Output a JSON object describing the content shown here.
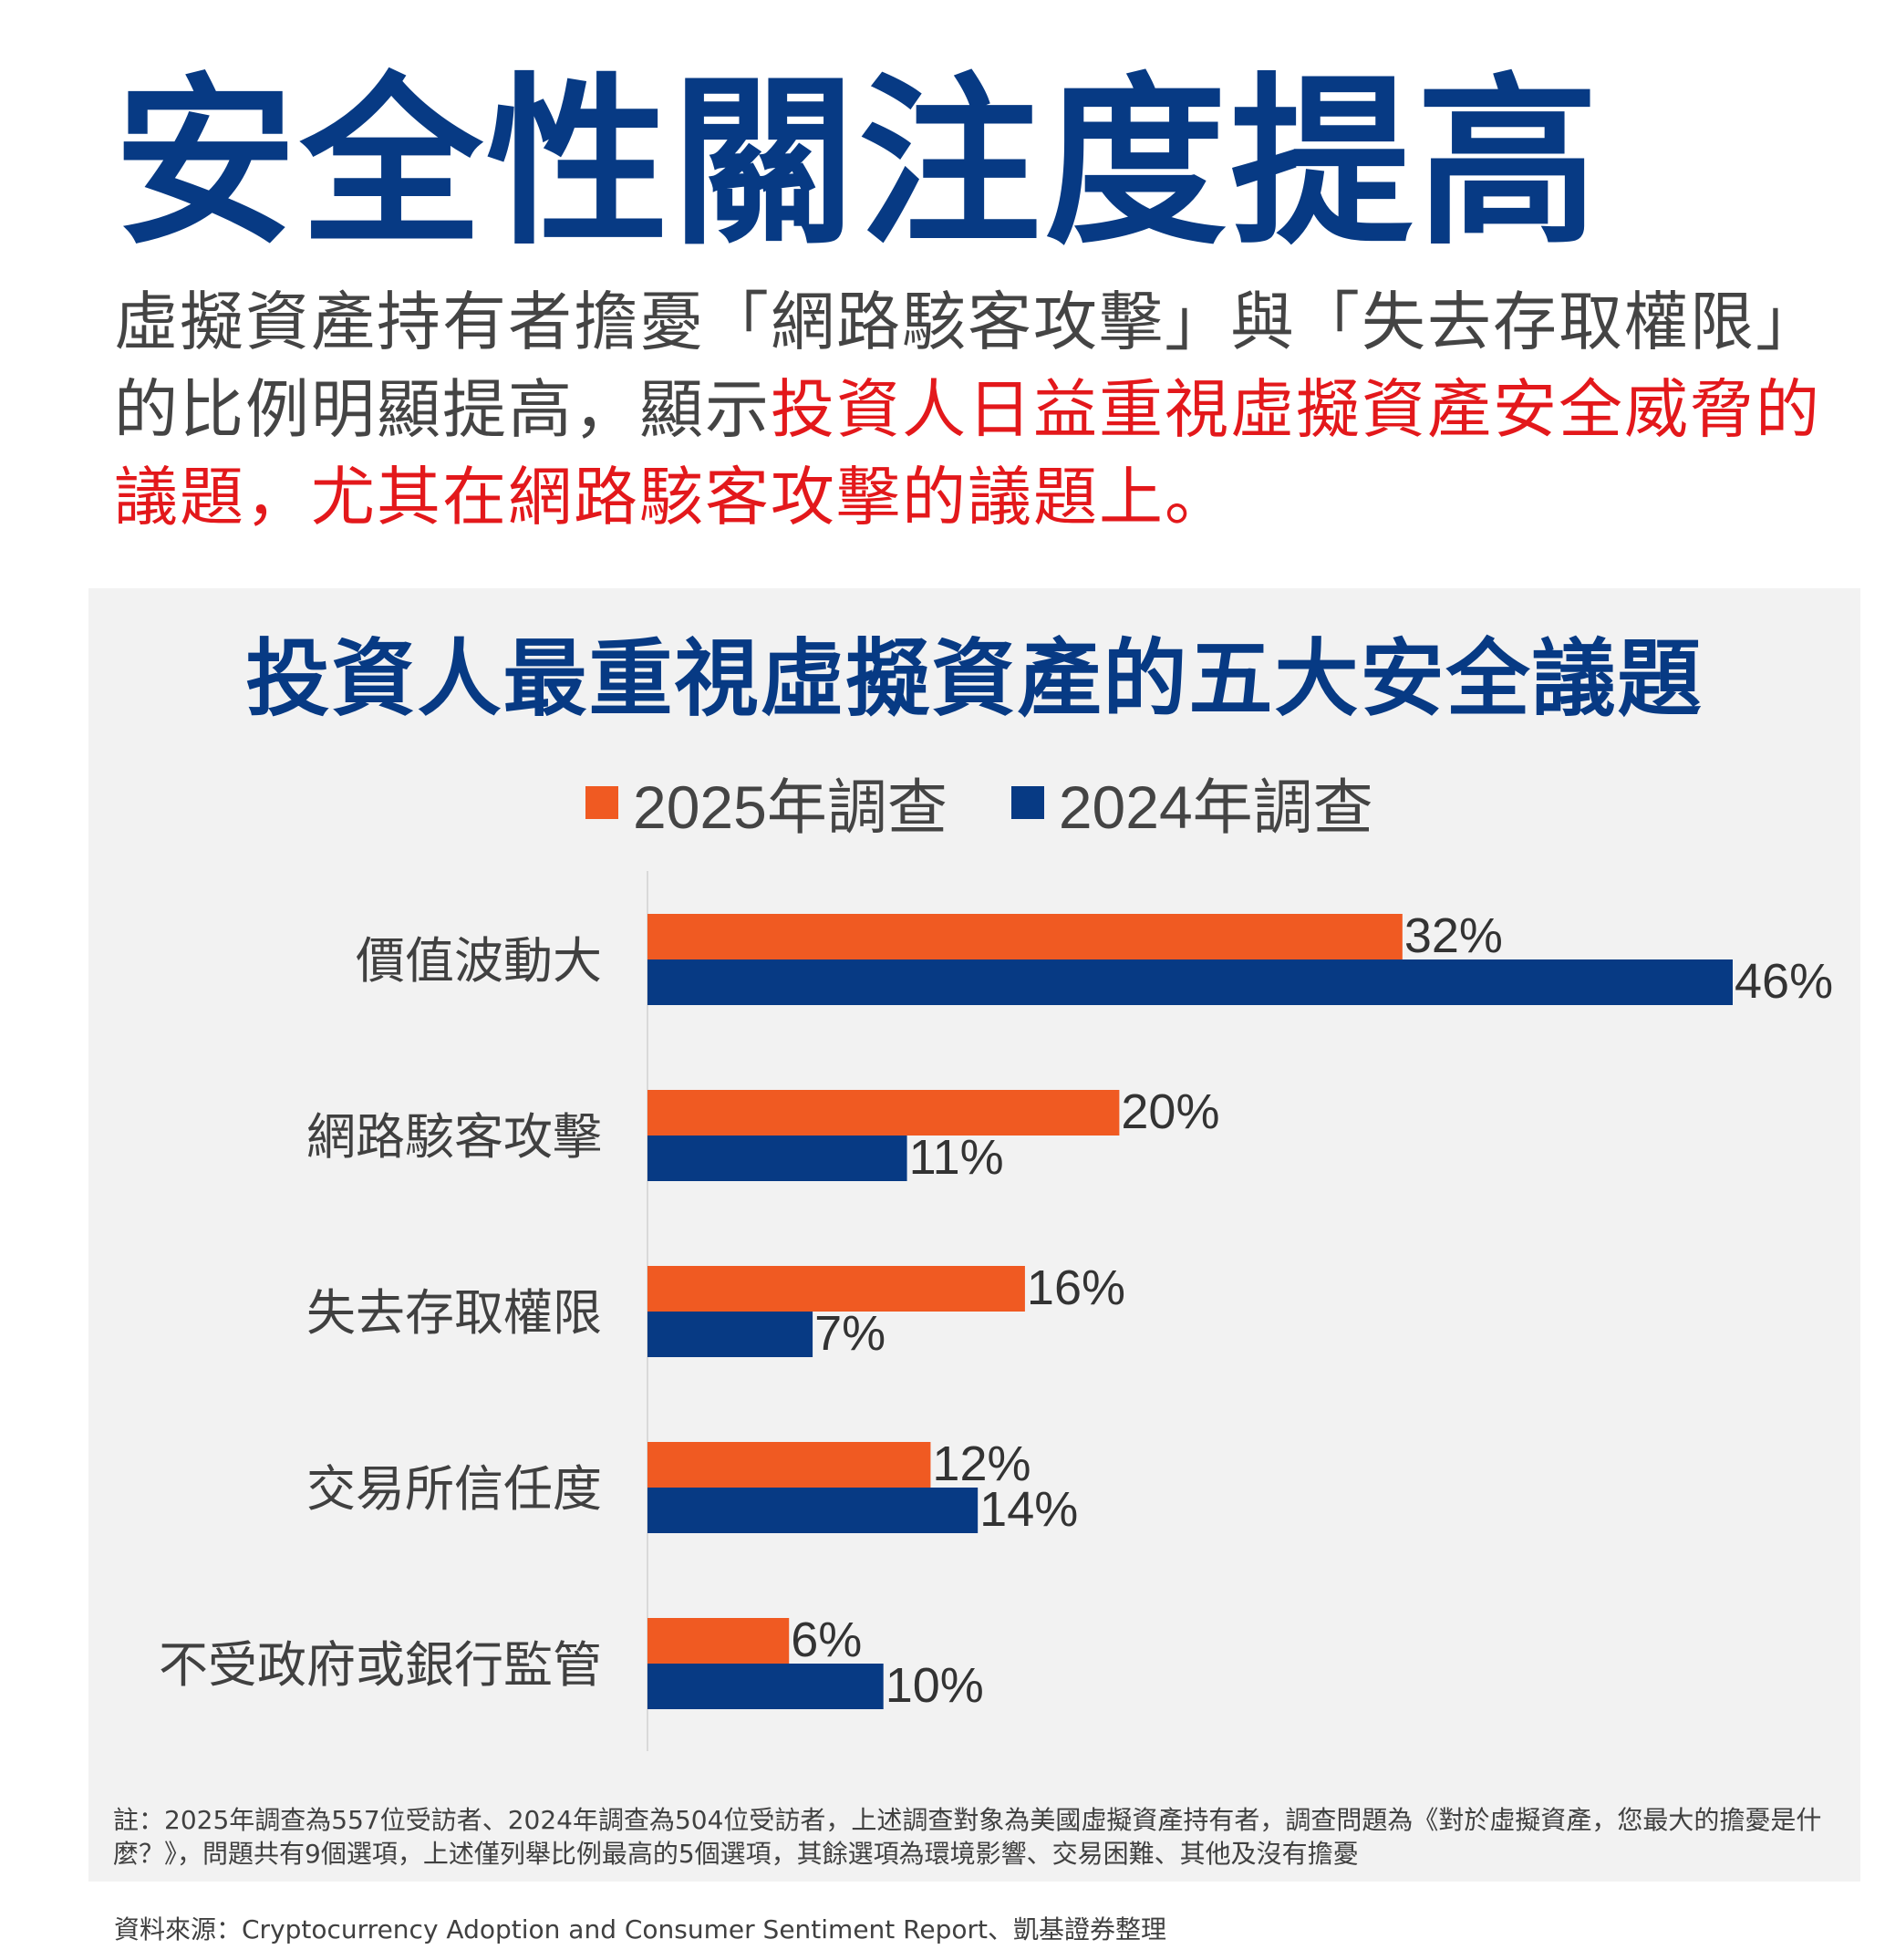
{
  "title": "安全性關注度提高",
  "description": {
    "plain": "虛擬資產持有者擔憂「網路駭客攻擊」與「失去存取權限」的比例明顯提高，顯示",
    "highlight": "投資人日益重視虛擬資產安全威脅的議題，尤其在網路駭客攻擊的議題上。"
  },
  "colors": {
    "title": "#073a84",
    "highlight": "#e3181b",
    "series_2025": "#f05a22",
    "series_2024": "#073a84",
    "panel_bg": "#f2f2f2"
  },
  "chart_data": {
    "type": "bar",
    "orientation": "horizontal",
    "title": "投資人最重視虛擬資產的五大安全議題",
    "categories": [
      "價值波動大",
      "網路駭客攻擊",
      "失去存取權限",
      "交易所信任度",
      "不受政府或銀行監管"
    ],
    "series": [
      {
        "name": "2025年調查",
        "values": [
          32,
          20,
          16,
          12,
          6
        ],
        "labels": [
          "32%",
          "20%",
          "16%",
          "12%",
          "6%"
        ],
        "color": "#f05a22"
      },
      {
        "name": "2024年調查",
        "values": [
          46,
          11,
          7,
          14,
          10
        ],
        "labels": [
          "46%",
          "11%",
          "7%",
          "14%",
          "10%"
        ],
        "color": "#073a84"
      }
    ],
    "xlim": [
      0,
      46
    ],
    "unit": "%",
    "legend": "top",
    "grid": false
  },
  "note": "註：2025年調查為557位受訪者、2024年調查為504位受訪者，上述調查對象為美國虛擬資產持有者，調查問題為《對於虛擬資產，您最大的擔憂是什麼？》，問題共有9個選項，上述僅列舉比例最高的5個選項，其餘選項為環境影響、交易困難、其他及沒有擔憂",
  "source": "資料來源：Cryptocurrency Adoption and Consumer Sentiment Report、凱基證券整理"
}
